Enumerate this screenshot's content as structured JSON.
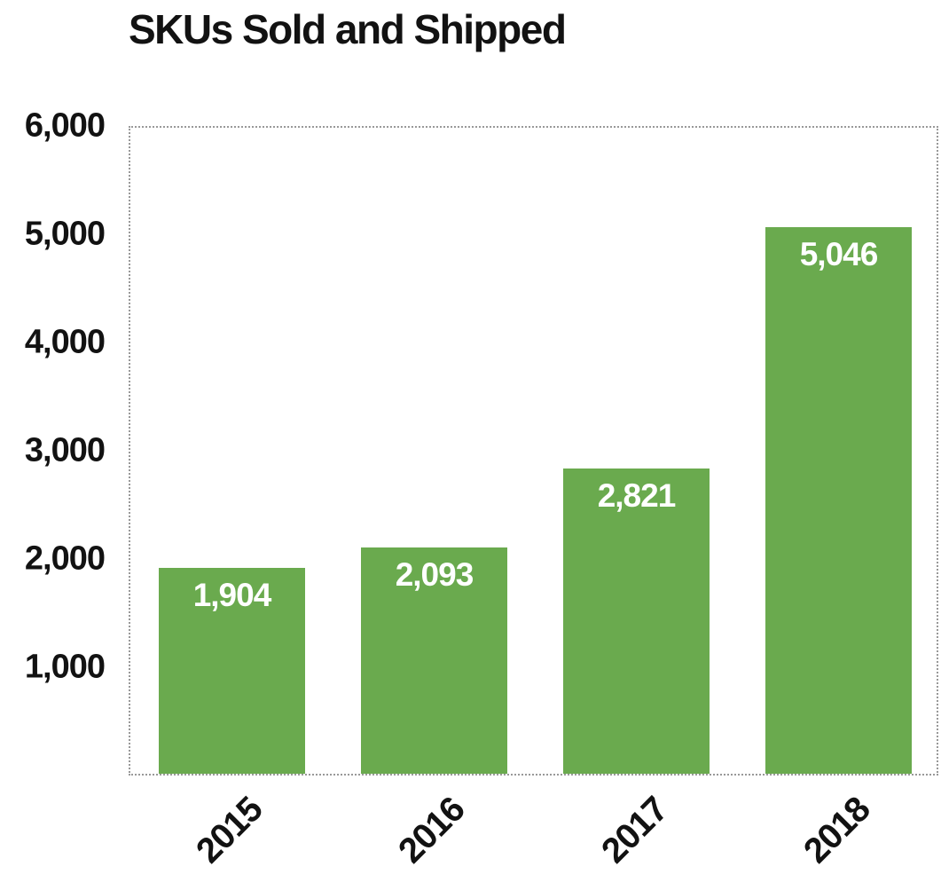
{
  "chart_data": {
    "type": "bar",
    "title": "SKUs Sold and Shipped",
    "categories": [
      "2015",
      "2016",
      "2017",
      "2018"
    ],
    "values": [
      1904,
      2093,
      2821,
      5046
    ],
    "value_labels": [
      "1,904",
      "2,093",
      "2,821",
      "5,046"
    ],
    "xlabel": "",
    "ylabel": "",
    "ylim": [
      0,
      6000
    ],
    "yticks": [
      1000,
      2000,
      3000,
      4000,
      5000,
      6000
    ],
    "ytick_labels": [
      "1,000",
      "2,000",
      "3,000",
      "4,000",
      "5,000",
      "6,000"
    ],
    "grid": false,
    "legend_position": "none",
    "x_tick_rotation": -45,
    "colors": {
      "bar_fill": "#6aaa4e",
      "bar_value_text": "#ffffff",
      "axis_text": "#121212",
      "plot_border": "#999999",
      "background": "#ffffff"
    }
  }
}
